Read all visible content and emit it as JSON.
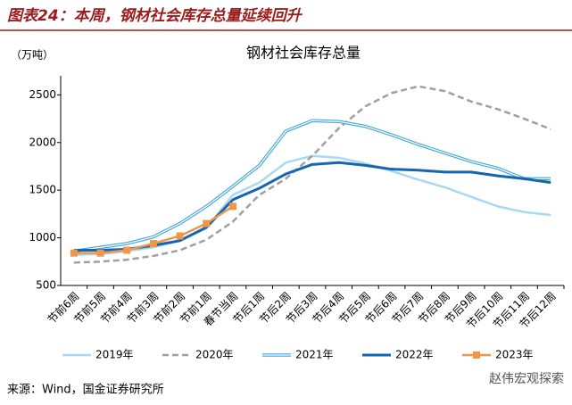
{
  "figure_title": "图表24：本周，钢材社会库存总量延续回升",
  "source": "来源：Wind，国金证券研究所",
  "watermark": "赵伟宏观探索",
  "chart_data": {
    "type": "line",
    "title": "钢材社会库存总量",
    "y_label": "（万吨）",
    "categories": [
      "节前6周",
      "节前5周",
      "节前4周",
      "节前3周",
      "节前2周",
      "节前1周",
      "春节当周",
      "节后1周",
      "节后2周",
      "节后3周",
      "节后4周",
      "节后5周",
      "节后6周",
      "节后7周",
      "节后8周",
      "节后9周",
      "节后10周",
      "节后11周",
      "节后12周"
    ],
    "ylim": [
      500,
      2700
    ],
    "yticks": [
      500,
      1000,
      1500,
      2000,
      2500
    ],
    "legend": "bottom",
    "series": [
      {
        "name": "2019年",
        "color": "#a9d8f2",
        "style": "solid",
        "values": [
          820,
          830,
          860,
          900,
          970,
          1100,
          1450,
          1580,
          1790,
          1860,
          1840,
          1780,
          1700,
          1610,
          1530,
          1430,
          1330,
          1270,
          1240
        ]
      },
      {
        "name": "2020年",
        "color": "#a0a0a0",
        "style": "dashed",
        "values": [
          740,
          750,
          770,
          810,
          870,
          980,
          1170,
          1450,
          1620,
          1860,
          2150,
          2380,
          2520,
          2590,
          2540,
          2430,
          2350,
          2250,
          2140
        ]
      },
      {
        "name": "2021年",
        "color": "#3aa5dc",
        "style": "double",
        "values": [
          860,
          900,
          940,
          1010,
          1150,
          1330,
          1540,
          1760,
          2120,
          2230,
          2220,
          2170,
          2080,
          1980,
          1890,
          1800,
          1730,
          1620,
          1620
        ]
      },
      {
        "name": "2022年",
        "color": "#1565b0",
        "style": "thick",
        "values": [
          870,
          870,
          880,
          920,
          970,
          1110,
          1400,
          1520,
          1670,
          1770,
          1790,
          1760,
          1720,
          1710,
          1690,
          1690,
          1650,
          1620,
          1580
        ]
      },
      {
        "name": "2023年",
        "color": "#f0964a",
        "style": "square",
        "values": [
          840,
          840,
          870,
          940,
          1020,
          1150,
          1330,
          null,
          null,
          null,
          null,
          null,
          null,
          null,
          null,
          null,
          null,
          null,
          null
        ]
      }
    ]
  }
}
